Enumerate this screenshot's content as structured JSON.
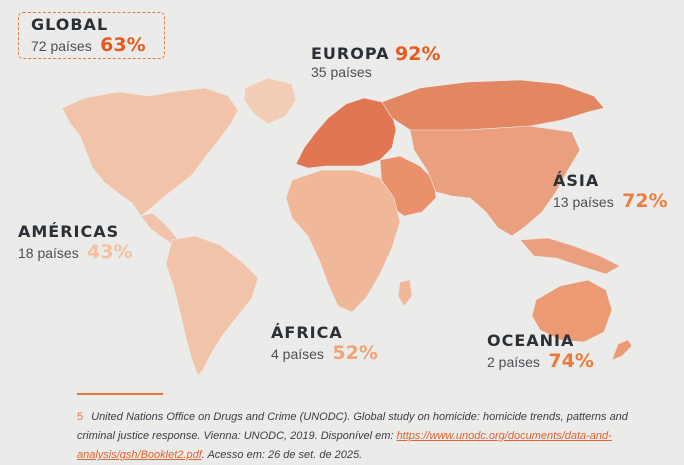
{
  "regions": {
    "global": {
      "name": "GLOBAL",
      "countries": "72 países",
      "percent": "63%",
      "value": 63,
      "color": "#e8591e"
    },
    "europa": {
      "name": "EUROPA",
      "countries": "35 países",
      "percent": "92%",
      "value": 92,
      "color": "#e8591e"
    },
    "asia": {
      "name": "ÁSIA",
      "countries": "13 países",
      "percent": "72%",
      "value": 72,
      "color": "#ec8043"
    },
    "americas": {
      "name": "AMÉRICAS",
      "countries": "18 países",
      "percent": "43%",
      "value": 43,
      "color": "#f3c0a2"
    },
    "africa": {
      "name": "ÁFRICA",
      "countries": "4 países",
      "percent": "52%",
      "value": 52,
      "color": "#f0a577"
    },
    "oceania": {
      "name": "OCEANIA",
      "countries": "2 países",
      "percent": "74%",
      "value": 74,
      "color": "#ec7a3a"
    }
  },
  "map_colors": {
    "americas": "#f1c3a8",
    "europe": "#e07752",
    "russia": "#e38762",
    "middle_east": "#e8916a",
    "asia": "#eaa07e",
    "africa": "#f0b898",
    "oceania": "#ec9a74",
    "greenland": "#f3cdb6"
  },
  "footnote": {
    "number": "5",
    "text_before_link": "United Nations Office on Drugs and Crime (UNODC). Global study on homicide: homicide trends, patterns and criminal justice response. Vienna: UNODC, 2019. Disponível em: ",
    "link": "https://www.unodc.org/documents/data-and-analysis/gsh/Booklet2.pdf",
    "text_after_link": ". Acesso em: 26 de set. de 2025."
  }
}
